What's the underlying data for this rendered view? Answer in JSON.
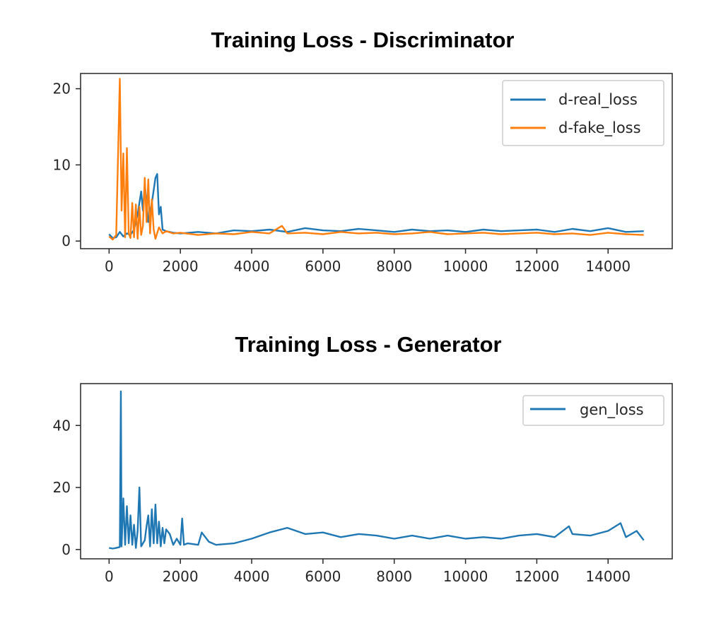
{
  "colors": {
    "d_real": "#1f77b4",
    "d_fake": "#ff7f0e",
    "gen": "#1f77b4",
    "axes": "#262626"
  },
  "chart_data": [
    {
      "type": "line",
      "title": "Training Loss - Discriminator",
      "xlabel": "",
      "ylabel": "",
      "xlim": [
        -800,
        15800
      ],
      "ylim": [
        -1,
        22
      ],
      "xticks": [
        0,
        2000,
        4000,
        6000,
        8000,
        10000,
        12000,
        14000
      ],
      "xtick_labels": [
        "0",
        "2000",
        "4000",
        "6000",
        "8000",
        "10000",
        "12000",
        "14000"
      ],
      "yticks": [
        0,
        10,
        20
      ],
      "ytick_labels": [
        "0",
        "10",
        "20"
      ],
      "grid": false,
      "legend": "upper right",
      "series": [
        {
          "name": "d-real_loss",
          "color": "#1f77b4",
          "x": [
            0,
            100,
            200,
            300,
            400,
            500,
            600,
            700,
            800,
            900,
            950,
            1000,
            1100,
            1200,
            1300,
            1350,
            1400,
            1450,
            1500,
            1600,
            1800,
            2000,
            2500,
            3000,
            3500,
            4000,
            4500,
            5000,
            5500,
            6000,
            6500,
            7000,
            7500,
            8000,
            8500,
            9000,
            9500,
            10000,
            10500,
            11000,
            11500,
            12000,
            12500,
            13000,
            13500,
            14000,
            14500,
            15000
          ],
          "y": [
            0.9,
            0.4,
            0.5,
            1.2,
            0.6,
            1.0,
            0.8,
            1.5,
            3.5,
            6.5,
            4.0,
            7.5,
            2.5,
            5.0,
            8.3,
            8.8,
            3.5,
            4.5,
            1.5,
            1.3,
            1.1,
            1.0,
            1.2,
            1.0,
            1.4,
            1.3,
            1.5,
            1.2,
            1.7,
            1.4,
            1.3,
            1.6,
            1.4,
            1.2,
            1.5,
            1.3,
            1.4,
            1.2,
            1.5,
            1.3,
            1.4,
            1.5,
            1.2,
            1.6,
            1.3,
            1.7,
            1.2,
            1.3
          ]
        },
        {
          "name": "d-fake_loss",
          "color": "#ff7f0e",
          "x": [
            0,
            100,
            200,
            300,
            350,
            400,
            450,
            500,
            550,
            600,
            650,
            700,
            750,
            800,
            850,
            900,
            950,
            1000,
            1050,
            1100,
            1150,
            1200,
            1250,
            1300,
            1400,
            1500,
            1600,
            1800,
            2000,
            2500,
            3000,
            3500,
            4000,
            4500,
            4850,
            5000,
            5500,
            6000,
            6500,
            7000,
            7500,
            8000,
            8500,
            9000,
            9500,
            10000,
            10500,
            11000,
            11500,
            12000,
            12500,
            13000,
            13500,
            14000,
            14500,
            15000
          ],
          "y": [
            0.6,
            0.2,
            0.8,
            21.3,
            4.0,
            11.5,
            0.5,
            12.2,
            1.0,
            0.4,
            5.0,
            0.5,
            4.8,
            0.3,
            4.5,
            0.8,
            2.0,
            8.3,
            2.5,
            8.1,
            1.0,
            5.5,
            1.5,
            0.3,
            1.8,
            1.0,
            1.3,
            1.0,
            1.1,
            0.8,
            1.0,
            0.9,
            1.2,
            1.0,
            2.0,
            1.0,
            1.1,
            0.9,
            1.2,
            1.0,
            1.1,
            0.9,
            1.0,
            1.2,
            0.9,
            1.0,
            1.1,
            0.9,
            1.0,
            1.1,
            0.9,
            1.0,
            0.8,
            1.1,
            0.9,
            0.8
          ]
        }
      ]
    },
    {
      "type": "line",
      "title": "Training Loss - Generator",
      "xlabel": "",
      "ylabel": "",
      "xlim": [
        -800,
        15800
      ],
      "ylim": [
        -3,
        53.5
      ],
      "xticks": [
        0,
        2000,
        4000,
        6000,
        8000,
        10000,
        12000,
        14000
      ],
      "xtick_labels": [
        "0",
        "2000",
        "4000",
        "6000",
        "8000",
        "10000",
        "12000",
        "14000"
      ],
      "yticks": [
        0,
        20,
        40
      ],
      "ytick_labels": [
        "0",
        "20",
        "40"
      ],
      "grid": false,
      "legend": "upper right",
      "series": [
        {
          "name": "gen_loss",
          "color": "#1f77b4",
          "x": [
            0,
            100,
            200,
            300,
            330,
            350,
            400,
            450,
            500,
            550,
            600,
            650,
            700,
            750,
            800,
            850,
            900,
            1000,
            1050,
            1100,
            1150,
            1200,
            1250,
            1300,
            1350,
            1400,
            1450,
            1500,
            1550,
            1600,
            1700,
            1800,
            1900,
            2000,
            2050,
            2100,
            2200,
            2500,
            2600,
            2800,
            3000,
            3500,
            4000,
            4500,
            5000,
            5500,
            6000,
            6500,
            7000,
            7500,
            8000,
            8500,
            9000,
            9500,
            10000,
            10500,
            11000,
            11500,
            12000,
            12500,
            12900,
            13000,
            13500,
            14000,
            14350,
            14500,
            14800,
            15000
          ],
          "y": [
            0.5,
            0.3,
            0.5,
            0.8,
            51.0,
            1.0,
            16.5,
            1.5,
            14.0,
            2.0,
            11.0,
            1.5,
            8.0,
            0.5,
            6.0,
            20.0,
            1.0,
            3.0,
            7.5,
            11.0,
            1.0,
            13.0,
            2.0,
            14.5,
            2.0,
            9.0,
            1.0,
            7.0,
            2.0,
            6.5,
            5.0,
            1.5,
            3.5,
            1.5,
            10.0,
            1.5,
            2.0,
            1.5,
            5.5,
            2.5,
            1.5,
            2.0,
            3.5,
            5.5,
            7.0,
            5.0,
            5.5,
            4.0,
            5.0,
            4.5,
            3.5,
            4.5,
            3.5,
            4.5,
            3.5,
            4.0,
            3.5,
            4.5,
            5.0,
            4.0,
            7.5,
            5.0,
            4.5,
            6.0,
            8.5,
            4.0,
            6.0,
            3.0
          ]
        }
      ]
    }
  ]
}
